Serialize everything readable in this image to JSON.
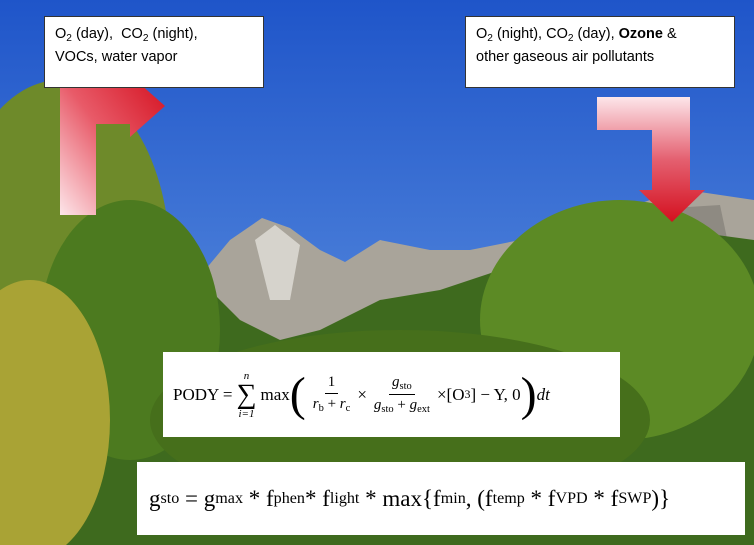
{
  "left_box": {
    "parts": [
      "O",
      "2",
      " (day),  CO",
      "2",
      " (night),",
      "VOCs, water vapor"
    ]
  },
  "right_box": {
    "parts": [
      "O",
      "2",
      " (night), CO",
      "2",
      " (day), ",
      "Ozone",
      " &",
      "other gaseous air pollutants"
    ]
  },
  "pody_formula": {
    "lhs": "PODY =",
    "sum_upper": "n",
    "sum_symbol": "∑",
    "sum_lower": "i=1",
    "max": "max",
    "frac1_num": "1",
    "frac1_den": [
      "r",
      "b",
      " + ",
      "r",
      "c"
    ],
    "times1": "×",
    "frac2_num": [
      "g",
      "sto"
    ],
    "frac2_den": [
      "g",
      "sto",
      " + ",
      "g",
      "ext"
    ],
    "tail": "×[O",
    "tail_sub": "3",
    "tail2": "] − Y, 0",
    "dt": "dt"
  },
  "gsto_formula": {
    "parts": [
      "g",
      "sto",
      " = g",
      "max",
      " * f",
      "phen",
      "* f",
      "light",
      " * max{f",
      "min",
      ", (f",
      "temp",
      " * f",
      "VPD",
      " * f",
      "SWP",
      ")}"
    ]
  }
}
